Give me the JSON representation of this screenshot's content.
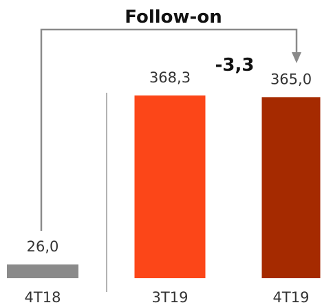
{
  "chart_data": {
    "type": "bar",
    "title": "Follow-on",
    "categories": [
      "4T18",
      "3T19",
      "4T19"
    ],
    "values": [
      26.0,
      368.3,
      365.0
    ],
    "value_labels": [
      "26,0",
      "368,3",
      "365,0"
    ],
    "delta_label": "-3,3",
    "colors": [
      "#8a8a8a",
      "#fc4618",
      "#a52a00"
    ],
    "bracket_color": "#8a8a8a",
    "divider_color": "#9a9a9a",
    "ylim": [
      0,
      368.3
    ],
    "grid": false,
    "legend": "none",
    "xlabel": "",
    "ylabel": ""
  }
}
